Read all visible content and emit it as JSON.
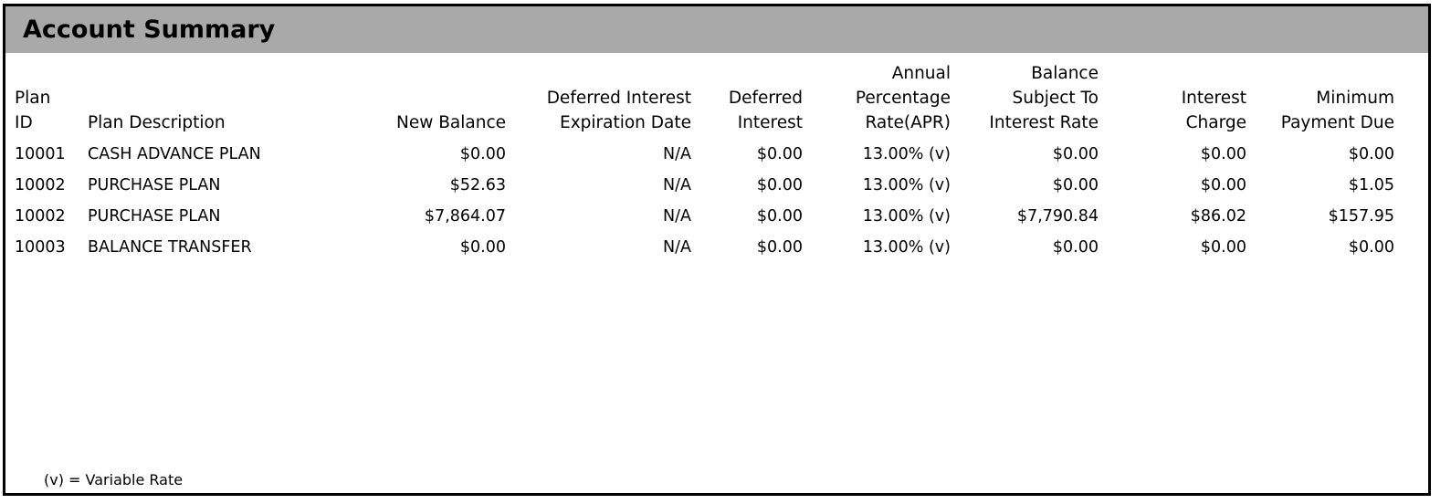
{
  "title": "Account Summary",
  "columns": {
    "plan_id": [
      "Plan",
      "ID"
    ],
    "plan_description": [
      "Plan Description"
    ],
    "new_balance": [
      "New Balance"
    ],
    "deferred_interest_expiration_date": [
      "Deferred Interest",
      "Expiration Date"
    ],
    "deferred_interest": [
      "Deferred",
      "Interest"
    ],
    "apr": [
      "Annual",
      "Percentage",
      "Rate(APR)"
    ],
    "balance_subject": [
      "Balance",
      "Subject To",
      "Interest Rate"
    ],
    "interest_charge": [
      "Interest",
      "Charge"
    ],
    "minimum_payment_due": [
      "Minimum",
      "Payment Due"
    ]
  },
  "rows": [
    {
      "plan_id": "10001",
      "plan_description": "CASH ADVANCE PLAN",
      "new_balance": "$0.00",
      "deferred_interest_expiration_date": "N/A",
      "deferred_interest": "$0.00",
      "apr": "13.00% (v)",
      "balance_subject": "$0.00",
      "interest_charge": "$0.00",
      "minimum_payment_due": "$0.00"
    },
    {
      "plan_id": "10002",
      "plan_description": "PURCHASE PLAN",
      "new_balance": "$52.63",
      "deferred_interest_expiration_date": "N/A",
      "deferred_interest": "$0.00",
      "apr": "13.00% (v)",
      "balance_subject": "$0.00",
      "interest_charge": "$0.00",
      "minimum_payment_due": "$1.05"
    },
    {
      "plan_id": "10002",
      "plan_description": "PURCHASE PLAN",
      "new_balance": "$7,864.07",
      "deferred_interest_expiration_date": "N/A",
      "deferred_interest": "$0.00",
      "apr": "13.00% (v)",
      "balance_subject": "$7,790.84",
      "interest_charge": "$86.02",
      "minimum_payment_due": "$157.95"
    },
    {
      "plan_id": "10003",
      "plan_description": "BALANCE TRANSFER",
      "new_balance": "$0.00",
      "deferred_interest_expiration_date": "N/A",
      "deferred_interest": "$0.00",
      "apr": "13.00% (v)",
      "balance_subject": "$0.00",
      "interest_charge": "$0.00",
      "minimum_payment_due": "$0.00"
    }
  ],
  "footnote": "(v) = Variable Rate"
}
